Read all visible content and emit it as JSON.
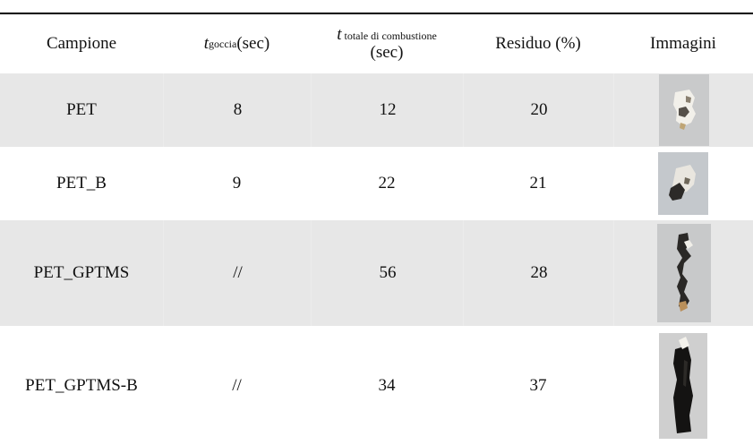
{
  "table": {
    "headers": {
      "campione": "Campione",
      "t_goccia_symbol": "t",
      "t_goccia_sub": "goccia",
      "t_goccia_unit": " (sec)",
      "t_totale_symbol": "t",
      "t_totale_sub": " totale di combustione",
      "t_totale_unit": "(sec)",
      "residuo": "Residuo (%)",
      "immagini": "Immagini"
    },
    "rows": [
      {
        "campione": "PET",
        "t_goccia": "8",
        "t_totale": "12",
        "residuo": "20",
        "image_icon": "burnt-sample-photo"
      },
      {
        "campione": "PET_B",
        "t_goccia": "9",
        "t_totale": "22",
        "residuo": "21",
        "image_icon": "burnt-sample-photo"
      },
      {
        "campione": "PET_GPTMS",
        "t_goccia": "//",
        "t_totale": "56",
        "residuo": "28",
        "image_icon": "burnt-sample-photo"
      },
      {
        "campione": "PET_GPTMS-B",
        "t_goccia": "//",
        "t_totale": "34",
        "residuo": "37",
        "image_icon": "burnt-sample-photo"
      }
    ]
  }
}
